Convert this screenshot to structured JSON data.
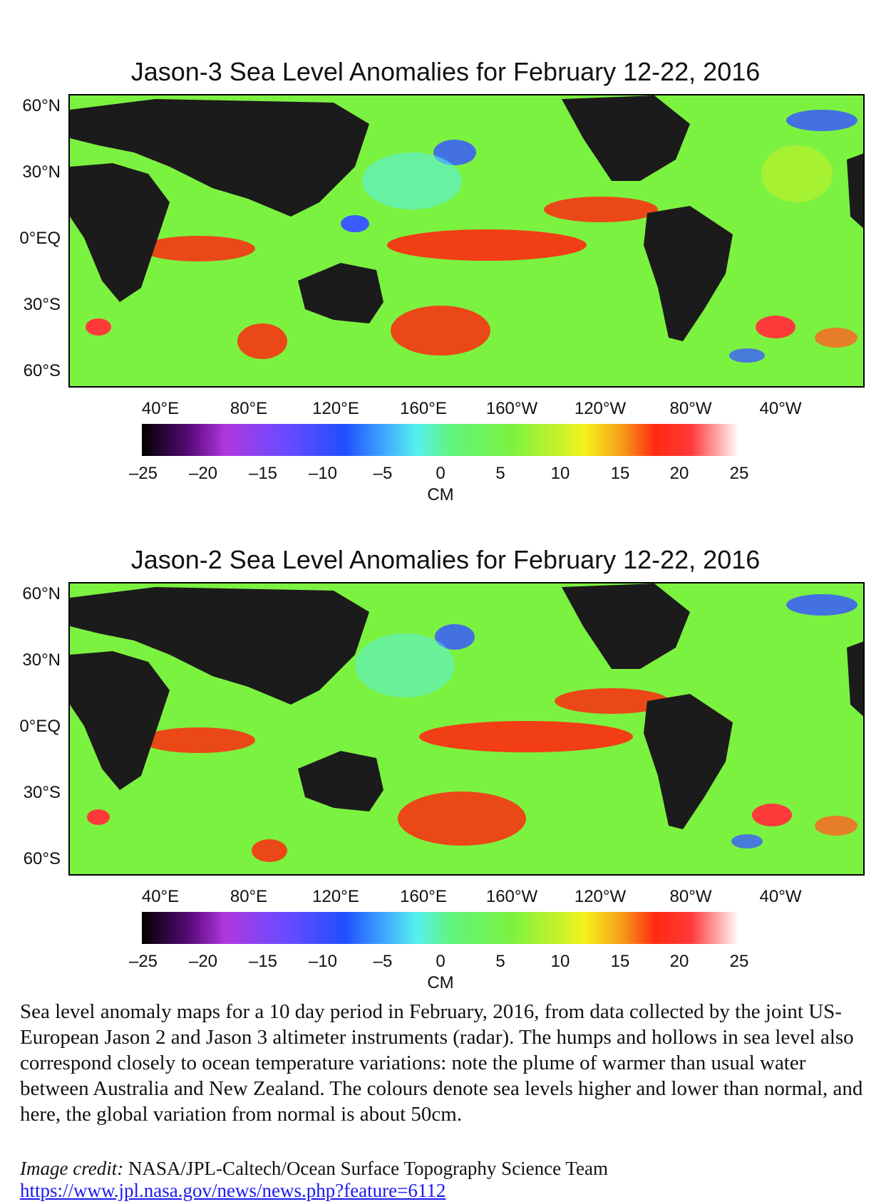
{
  "maps": [
    {
      "title": "Jason-3 Sea Level Anomalies for February 12-22, 2016",
      "lat_labels": [
        "60°N",
        "30°N",
        "0°EQ",
        "30°S",
        "60°S"
      ],
      "lon_labels": [
        "40°E",
        "80°E",
        "120°E",
        "160°E",
        "160°W",
        "120°W",
        "80°W",
        "40°W"
      ]
    },
    {
      "title": "Jason-2 Sea Level Anomalies for February 12-22, 2016",
      "lat_labels": [
        "60°N",
        "30°N",
        "0°EQ",
        "30°S",
        "60°S"
      ],
      "lon_labels": [
        "40°E",
        "80°E",
        "120°E",
        "160°E",
        "160°W",
        "120°W",
        "80°W",
        "40°W"
      ]
    }
  ],
  "colorbar": {
    "ticks": [
      "–25",
      "–20",
      "–15",
      "–10",
      "–5",
      "0",
      "5",
      "10",
      "15",
      "20",
      "25"
    ],
    "unit": "CM",
    "min": -25,
    "max": 25
  },
  "caption": "Sea level anomaly maps for a 10 day period in February, 2016, from data collected by the joint US-European Jason 2 and Jason 3 altimeter instruments (radar).  The humps and hollows in sea level also correspond closely to ocean temperature variations: note the plume of warmer than usual water between Australia and New Zealand.  The colours denote sea levels higher and lower than normal, and here, the global variation from normal is about 50cm.",
  "credit_label": "Image credit:",
  "credit_text": " NASA/JPL-Caltech/Ocean Surface Topography Science Team",
  "link_text": "https://www.jpl.nasa.gov/news/news.php?feature=6112",
  "colors": {
    "ocean": "#7cf240",
    "land": "#1b1b1b",
    "warm": "#ff2a10",
    "cool": "#3a5bff",
    "link": "#1a1aee"
  }
}
